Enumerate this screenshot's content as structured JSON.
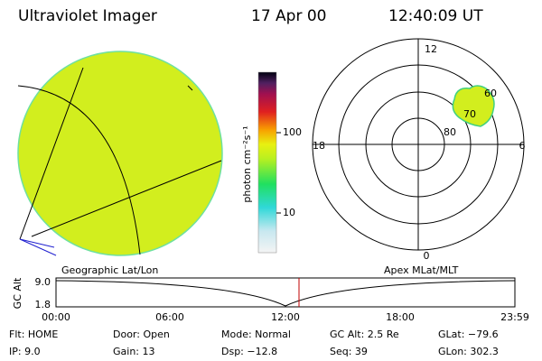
{
  "header": {
    "instrument": "Ultraviolet Imager",
    "date": "17 Apr 00",
    "time": "12:40:09 UT"
  },
  "colorbar": {
    "unit": "photon cm⁻²s⁻¹",
    "labels": [
      "100",
      "10"
    ]
  },
  "polar": {
    "mlt_labels": [
      "12",
      "6",
      "0",
      "18"
    ],
    "mlat_labels": [
      "80",
      "70",
      "60"
    ]
  },
  "timeline": {
    "left_title": "Geographic Lat/Lon",
    "right_title": "Apex MLat/MLT",
    "y_axis_label": "GC Alt",
    "y_labels": [
      "9.0",
      "1.8"
    ],
    "x_labels": [
      "00:00",
      "06:00",
      "12:00",
      "18:00",
      "23:59"
    ]
  },
  "status": [
    [
      "Flt: HOME",
      "Door: Open",
      "Mode: Normal",
      "GC Alt: 2.5 Re",
      "GLat: −79.6"
    ],
    [
      "IP: 9.0",
      "Gain: 13",
      "Dsp: −12.8",
      "Seq: 39",
      "GLon: 302.3"
    ]
  ]
}
